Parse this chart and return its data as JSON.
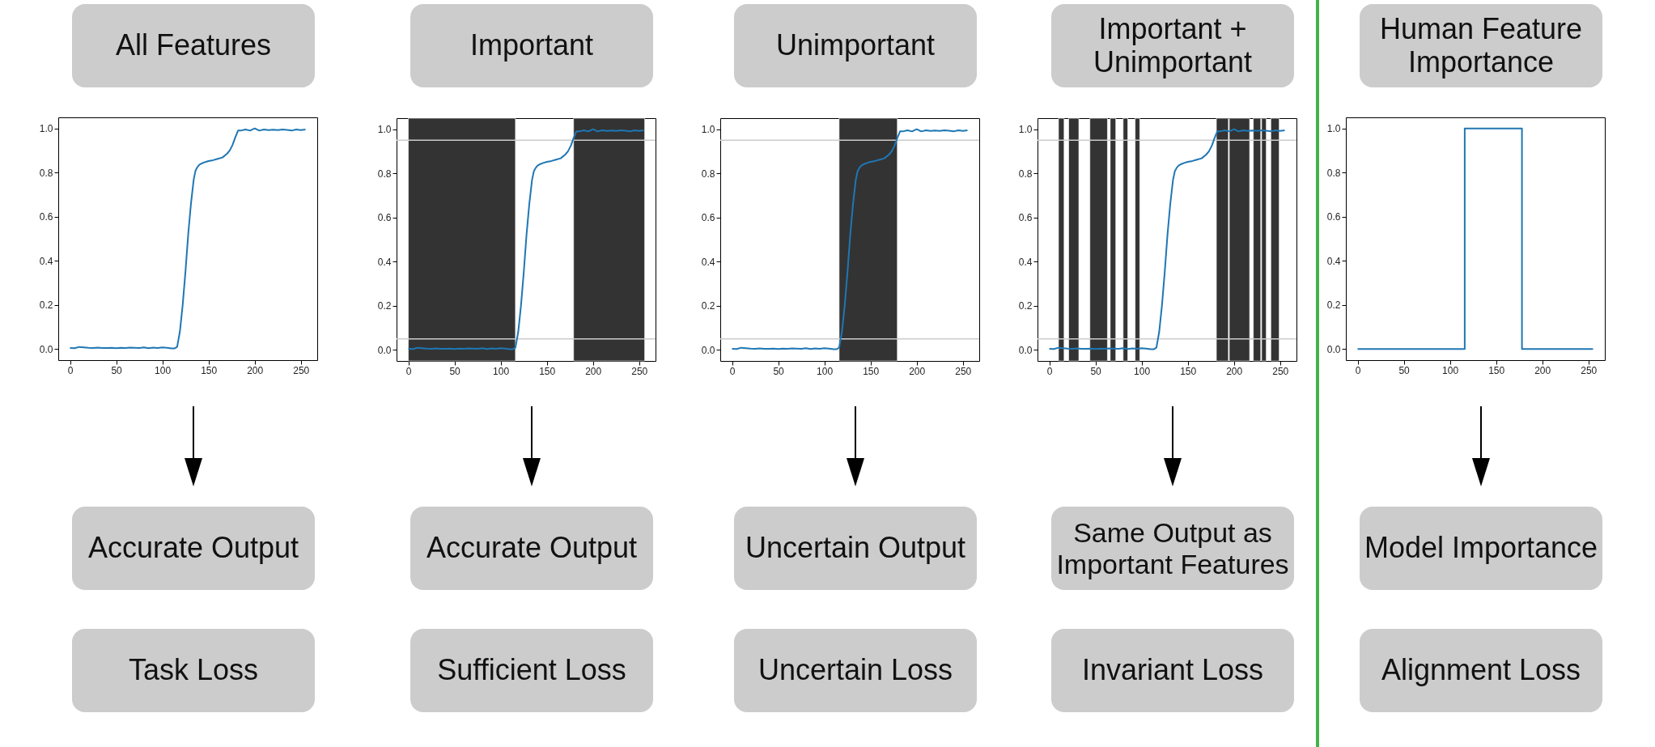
{
  "chart_data": [
    {
      "type": "line",
      "title": "All Features",
      "annotations": [
        "Accurate Output",
        "Task Loss"
      ],
      "x": [
        0,
        5,
        10,
        15,
        20,
        25,
        30,
        35,
        40,
        45,
        50,
        55,
        60,
        65,
        70,
        75,
        80,
        85,
        90,
        95,
        100,
        105,
        110,
        113,
        116,
        119,
        122,
        125,
        128,
        131,
        134,
        136,
        138,
        140,
        143,
        146,
        150,
        155,
        160,
        165,
        170,
        173,
        176,
        179,
        182,
        185,
        190,
        195,
        200,
        205,
        210,
        215,
        220,
        225,
        230,
        235,
        240,
        245,
        250,
        255
      ],
      "series": [
        {
          "color": "#1f77b4",
          "values": [
            0.005,
            0.004,
            0.01,
            0.008,
            0.006,
            0.005,
            0.007,
            0.005,
            0.005,
            0.006,
            0.004,
            0.006,
            0.005,
            0.007,
            0.006,
            0.005,
            0.008,
            0.004,
            0.007,
            0.005,
            0.008,
            0.006,
            0.003,
            0.003,
            0.01,
            0.08,
            0.2,
            0.35,
            0.52,
            0.66,
            0.77,
            0.81,
            0.825,
            0.835,
            0.842,
            0.847,
            0.852,
            0.856,
            0.862,
            0.868,
            0.885,
            0.9,
            0.925,
            0.96,
            0.99,
            0.99,
            0.995,
            0.99,
            1.0,
            0.99,
            0.995,
            0.992,
            0.994,
            0.992,
            0.995,
            0.993,
            0.99,
            0.995,
            0.992,
            0.995
          ]
        }
      ],
      "xlim": [
        -12.75,
        267.75
      ],
      "xticks": [
        0,
        50,
        100,
        150,
        200,
        250
      ],
      "ylim": [
        -0.05,
        1.05
      ],
      "yticks": [
        {
          "value": 0,
          "label": "0.0"
        },
        {
          "value": 0.2,
          "label": "0.2"
        },
        {
          "value": 0.4,
          "label": "0.4"
        },
        {
          "value": 0.6,
          "label": "0.6"
        },
        {
          "value": 0.8,
          "label": "0.8"
        },
        {
          "value": 1,
          "label": "1.0"
        }
      ],
      "grid": false,
      "marker": "none",
      "line_style": "solid"
    },
    {
      "type": "line",
      "title": "Important",
      "annotations": [
        "Accurate Output",
        "Sufficient Loss"
      ],
      "x": [
        0,
        5,
        10,
        15,
        20,
        25,
        30,
        35,
        40,
        45,
        50,
        55,
        60,
        65,
        70,
        75,
        80,
        85,
        90,
        95,
        100,
        105,
        110,
        113,
        116,
        119,
        122,
        125,
        128,
        131,
        134,
        136,
        138,
        140,
        143,
        146,
        150,
        155,
        160,
        165,
        170,
        173,
        176,
        179,
        182,
        185,
        190,
        195,
        200,
        205,
        210,
        215,
        220,
        225,
        230,
        235,
        240,
        245,
        250,
        255
      ],
      "series": [
        {
          "color": "#1f77b4",
          "values": [
            0.005,
            0.004,
            0.01,
            0.008,
            0.006,
            0.005,
            0.007,
            0.005,
            0.005,
            0.006,
            0.004,
            0.006,
            0.005,
            0.007,
            0.006,
            0.005,
            0.008,
            0.004,
            0.007,
            0.005,
            0.008,
            0.006,
            0.003,
            0.003,
            0.01,
            0.08,
            0.2,
            0.35,
            0.52,
            0.66,
            0.77,
            0.81,
            0.825,
            0.835,
            0.842,
            0.847,
            0.852,
            0.856,
            0.862,
            0.868,
            0.885,
            0.9,
            0.925,
            0.96,
            0.99,
            0.99,
            0.995,
            0.99,
            1.0,
            0.99,
            0.995,
            0.992,
            0.994,
            0.992,
            0.995,
            0.993,
            0.99,
            0.995,
            0.992,
            0.995
          ]
        }
      ],
      "bands": [
        {
          "axis": "x",
          "from": 0,
          "to": 116,
          "color": "#333333"
        },
        {
          "axis": "x",
          "from": 179,
          "to": 256,
          "color": "#333333"
        }
      ],
      "ref_lines": [
        {
          "axis": "y",
          "value": 0.05,
          "color": "#cccccc"
        },
        {
          "axis": "y",
          "value": 0.95,
          "color": "#cccccc"
        }
      ],
      "xlim": [
        -12.75,
        267.75
      ],
      "xticks": [
        0,
        50,
        100,
        150,
        200,
        250
      ],
      "ylim": [
        -0.05,
        1.05
      ],
      "yticks": [
        {
          "value": 0,
          "label": "0.0"
        },
        {
          "value": 0.2,
          "label": "0.2"
        },
        {
          "value": 0.4,
          "label": "0.4"
        },
        {
          "value": 0.6,
          "label": "0.6"
        },
        {
          "value": 0.8,
          "label": "0.8"
        },
        {
          "value": 1,
          "label": "1.0"
        }
      ],
      "grid": false,
      "marker": "none",
      "line_style": "solid"
    },
    {
      "type": "line",
      "title": "Unimportant",
      "annotations": [
        "Uncertain Output",
        "Uncertain Loss"
      ],
      "x": [
        0,
        5,
        10,
        15,
        20,
        25,
        30,
        35,
        40,
        45,
        50,
        55,
        60,
        65,
        70,
        75,
        80,
        85,
        90,
        95,
        100,
        105,
        110,
        113,
        116,
        119,
        122,
        125,
        128,
        131,
        134,
        136,
        138,
        140,
        143,
        146,
        150,
        155,
        160,
        165,
        170,
        173,
        176,
        179,
        182,
        185,
        190,
        195,
        200,
        205,
        210,
        215,
        220,
        225,
        230,
        235,
        240,
        245,
        250,
        255
      ],
      "series": [
        {
          "color": "#1f77b4",
          "values": [
            0.005,
            0.004,
            0.01,
            0.008,
            0.006,
            0.005,
            0.007,
            0.005,
            0.005,
            0.006,
            0.004,
            0.006,
            0.005,
            0.007,
            0.006,
            0.005,
            0.008,
            0.004,
            0.007,
            0.005,
            0.008,
            0.006,
            0.003,
            0.003,
            0.01,
            0.08,
            0.2,
            0.35,
            0.52,
            0.66,
            0.77,
            0.81,
            0.825,
            0.835,
            0.842,
            0.847,
            0.852,
            0.856,
            0.862,
            0.868,
            0.885,
            0.9,
            0.925,
            0.96,
            0.99,
            0.99,
            0.995,
            0.99,
            1.0,
            0.99,
            0.995,
            0.992,
            0.994,
            0.992,
            0.995,
            0.993,
            0.99,
            0.995,
            0.992,
            0.995
          ]
        }
      ],
      "bands": [
        {
          "axis": "x",
          "from": 116,
          "to": 179,
          "color": "#333333"
        }
      ],
      "ref_lines": [
        {
          "axis": "y",
          "value": 0.05,
          "color": "#cccccc"
        },
        {
          "axis": "y",
          "value": 0.95,
          "color": "#cccccc"
        }
      ],
      "xlim": [
        -12.75,
        267.75
      ],
      "xticks": [
        0,
        50,
        100,
        150,
        200,
        250
      ],
      "ylim": [
        -0.05,
        1.05
      ],
      "yticks": [
        {
          "value": 0,
          "label": "0.0"
        },
        {
          "value": 0.2,
          "label": "0.2"
        },
        {
          "value": 0.4,
          "label": "0.4"
        },
        {
          "value": 0.6,
          "label": "0.6"
        },
        {
          "value": 0.8,
          "label": "0.8"
        },
        {
          "value": 1,
          "label": "1.0"
        }
      ],
      "grid": false,
      "marker": "none",
      "line_style": "solid"
    },
    {
      "type": "line",
      "title": "Important + Unimportant",
      "annotations": [
        "Same Output as Important Features",
        "Invariant Loss"
      ],
      "x": [
        0,
        5,
        10,
        15,
        20,
        25,
        30,
        35,
        40,
        45,
        50,
        55,
        60,
        65,
        70,
        75,
        80,
        85,
        90,
        95,
        100,
        105,
        110,
        113,
        116,
        119,
        122,
        125,
        128,
        131,
        134,
        136,
        138,
        140,
        143,
        146,
        150,
        155,
        160,
        165,
        170,
        173,
        176,
        179,
        182,
        185,
        190,
        195,
        200,
        205,
        210,
        215,
        220,
        225,
        230,
        235,
        240,
        245,
        250,
        255
      ],
      "series": [
        {
          "color": "#1f77b4",
          "values": [
            0.005,
            0.004,
            0.01,
            0.008,
            0.006,
            0.005,
            0.007,
            0.005,
            0.005,
            0.006,
            0.004,
            0.006,
            0.005,
            0.007,
            0.006,
            0.005,
            0.008,
            0.004,
            0.007,
            0.005,
            0.008,
            0.006,
            0.003,
            0.003,
            0.01,
            0.08,
            0.2,
            0.35,
            0.52,
            0.66,
            0.77,
            0.81,
            0.825,
            0.835,
            0.842,
            0.847,
            0.852,
            0.856,
            0.862,
            0.868,
            0.885,
            0.9,
            0.925,
            0.96,
            0.99,
            0.99,
            0.995,
            0.99,
            1.0,
            0.99,
            0.995,
            0.992,
            0.994,
            0.992,
            0.995,
            0.993,
            0.99,
            0.995,
            0.992,
            0.995
          ]
        }
      ],
      "bands": [
        {
          "axis": "x",
          "from": 10,
          "to": 16,
          "color": "#333333"
        },
        {
          "axis": "x",
          "from": 21,
          "to": 32,
          "color": "#333333"
        },
        {
          "axis": "x",
          "from": 44,
          "to": 63,
          "color": "#333333"
        },
        {
          "axis": "x",
          "from": 66,
          "to": 72,
          "color": "#333333"
        },
        {
          "axis": "x",
          "from": 80,
          "to": 85,
          "color": "#333333"
        },
        {
          "axis": "x",
          "from": 93,
          "to": 98,
          "color": "#333333"
        },
        {
          "axis": "x",
          "from": 181,
          "to": 194,
          "color": "#333333"
        },
        {
          "axis": "x",
          "from": 195,
          "to": 217,
          "color": "#333333"
        },
        {
          "axis": "x",
          "from": 221,
          "to": 229,
          "color": "#333333"
        },
        {
          "axis": "x",
          "from": 230,
          "to": 235,
          "color": "#333333"
        },
        {
          "axis": "x",
          "from": 240,
          "to": 249,
          "color": "#333333"
        }
      ],
      "ref_lines": [
        {
          "axis": "y",
          "value": 0.05,
          "color": "#cccccc"
        },
        {
          "axis": "y",
          "value": 0.95,
          "color": "#cccccc"
        }
      ],
      "xlim": [
        -12.75,
        267.75
      ],
      "xticks": [
        0,
        50,
        100,
        150,
        200,
        250
      ],
      "ylim": [
        -0.05,
        1.05
      ],
      "yticks": [
        {
          "value": 0,
          "label": "0.0"
        },
        {
          "value": 0.2,
          "label": "0.2"
        },
        {
          "value": 0.4,
          "label": "0.4"
        },
        {
          "value": 0.6,
          "label": "0.6"
        },
        {
          "value": 0.8,
          "label": "0.8"
        },
        {
          "value": 1,
          "label": "1.0"
        }
      ],
      "grid": false,
      "marker": "none",
      "line_style": "solid"
    },
    {
      "type": "step",
      "title": "Human Feature Importance",
      "annotations": [
        "Model Importance",
        "Alignment Loss"
      ],
      "x": [
        0,
        116,
        178,
        255
      ],
      "series": [
        {
          "color": "#1f77b4",
          "values": [
            0,
            1,
            0,
            0
          ]
        }
      ],
      "xlim": [
        -12.75,
        267.75
      ],
      "xticks": [
        0,
        50,
        100,
        150,
        200,
        250
      ],
      "ylim": [
        -0.05,
        1.05
      ],
      "yticks": [
        {
          "value": 0,
          "label": "0.0"
        },
        {
          "value": 0.2,
          "label": "0.2"
        },
        {
          "value": 0.4,
          "label": "0.4"
        },
        {
          "value": 0.6,
          "label": "0.6"
        },
        {
          "value": 0.8,
          "label": "0.8"
        },
        {
          "value": 1,
          "label": "1.0"
        }
      ],
      "grid": false,
      "marker": "none",
      "line_style": "solid"
    }
  ]
}
